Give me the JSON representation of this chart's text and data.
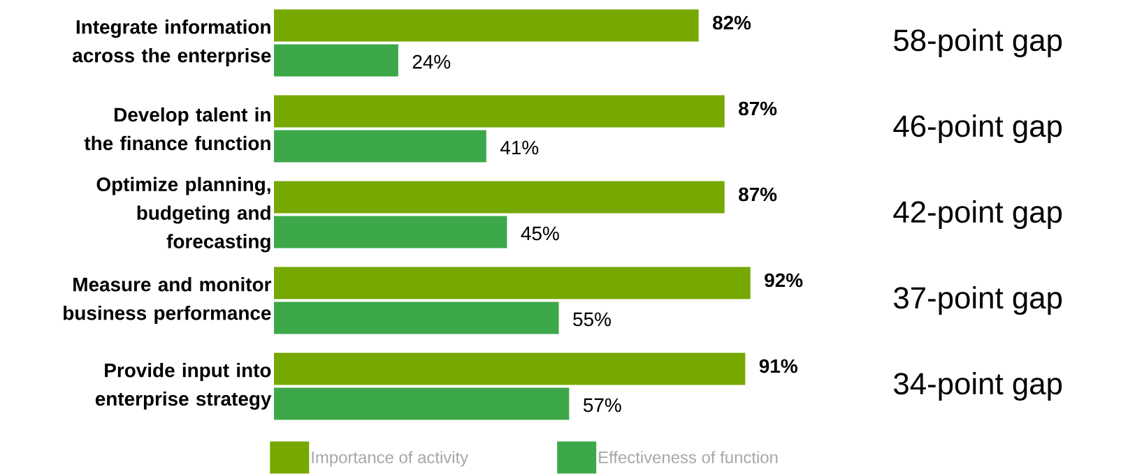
{
  "chart_data": {
    "type": "bar",
    "orientation": "horizontal",
    "categories": [
      "Integrate information across the enterprise",
      "Develop talent in the finance function",
      "Optimize planning, budgeting and forecasting",
      "Measure and monitor business performance",
      "Provide input into enterprise strategy"
    ],
    "series": [
      {
        "name": "Importance of activity",
        "color": "#76a800",
        "values": [
          82,
          87,
          87,
          92,
          91
        ],
        "value_labels": [
          "82%",
          "87%",
          "87%",
          "92%",
          "91%"
        ]
      },
      {
        "name": "Effectiveness of function",
        "color": "#3da84a",
        "values": [
          24,
          41,
          45,
          55,
          57
        ],
        "value_labels": [
          "24%",
          "41%",
          "45%",
          "55%",
          "57%"
        ]
      }
    ],
    "annotations": [
      "58-point gap",
      "46-point gap",
      "42-point gap",
      "37-point gap",
      "34-point gap"
    ],
    "legend": "bottom"
  }
}
